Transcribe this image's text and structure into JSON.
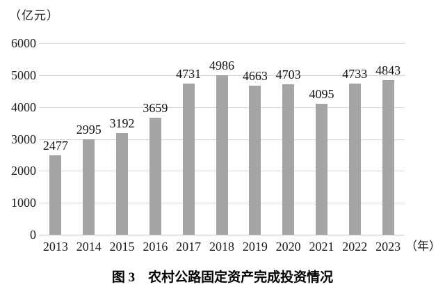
{
  "figure": {
    "y_unit": "（亿元）",
    "x_unit": "（年）",
    "caption": "图 3　农村公路固定资产完成投资情况"
  },
  "colors": {
    "bar": "#a5a5a5",
    "gridline": "#d9d9d9",
    "baseline": "#c2c2c2",
    "text": "#1a1a1a"
  },
  "chart_data": {
    "type": "bar",
    "categories": [
      "2013",
      "2014",
      "2015",
      "2016",
      "2017",
      "2018",
      "2019",
      "2020",
      "2021",
      "2022",
      "2023"
    ],
    "values": [
      2477,
      2995,
      3192,
      3659,
      4731,
      4986,
      4663,
      4703,
      4095,
      4733,
      4843
    ],
    "title": "图 3　农村公路固定资产完成投资情况",
    "xlabel": "（年）",
    "ylabel": "（亿元）",
    "ylim": [
      0,
      6000
    ],
    "ytick_interval": 1000,
    "yticks": [
      0,
      1000,
      2000,
      3000,
      4000,
      5000,
      6000
    ],
    "grid": true,
    "legend": false,
    "bar_labels": true
  }
}
